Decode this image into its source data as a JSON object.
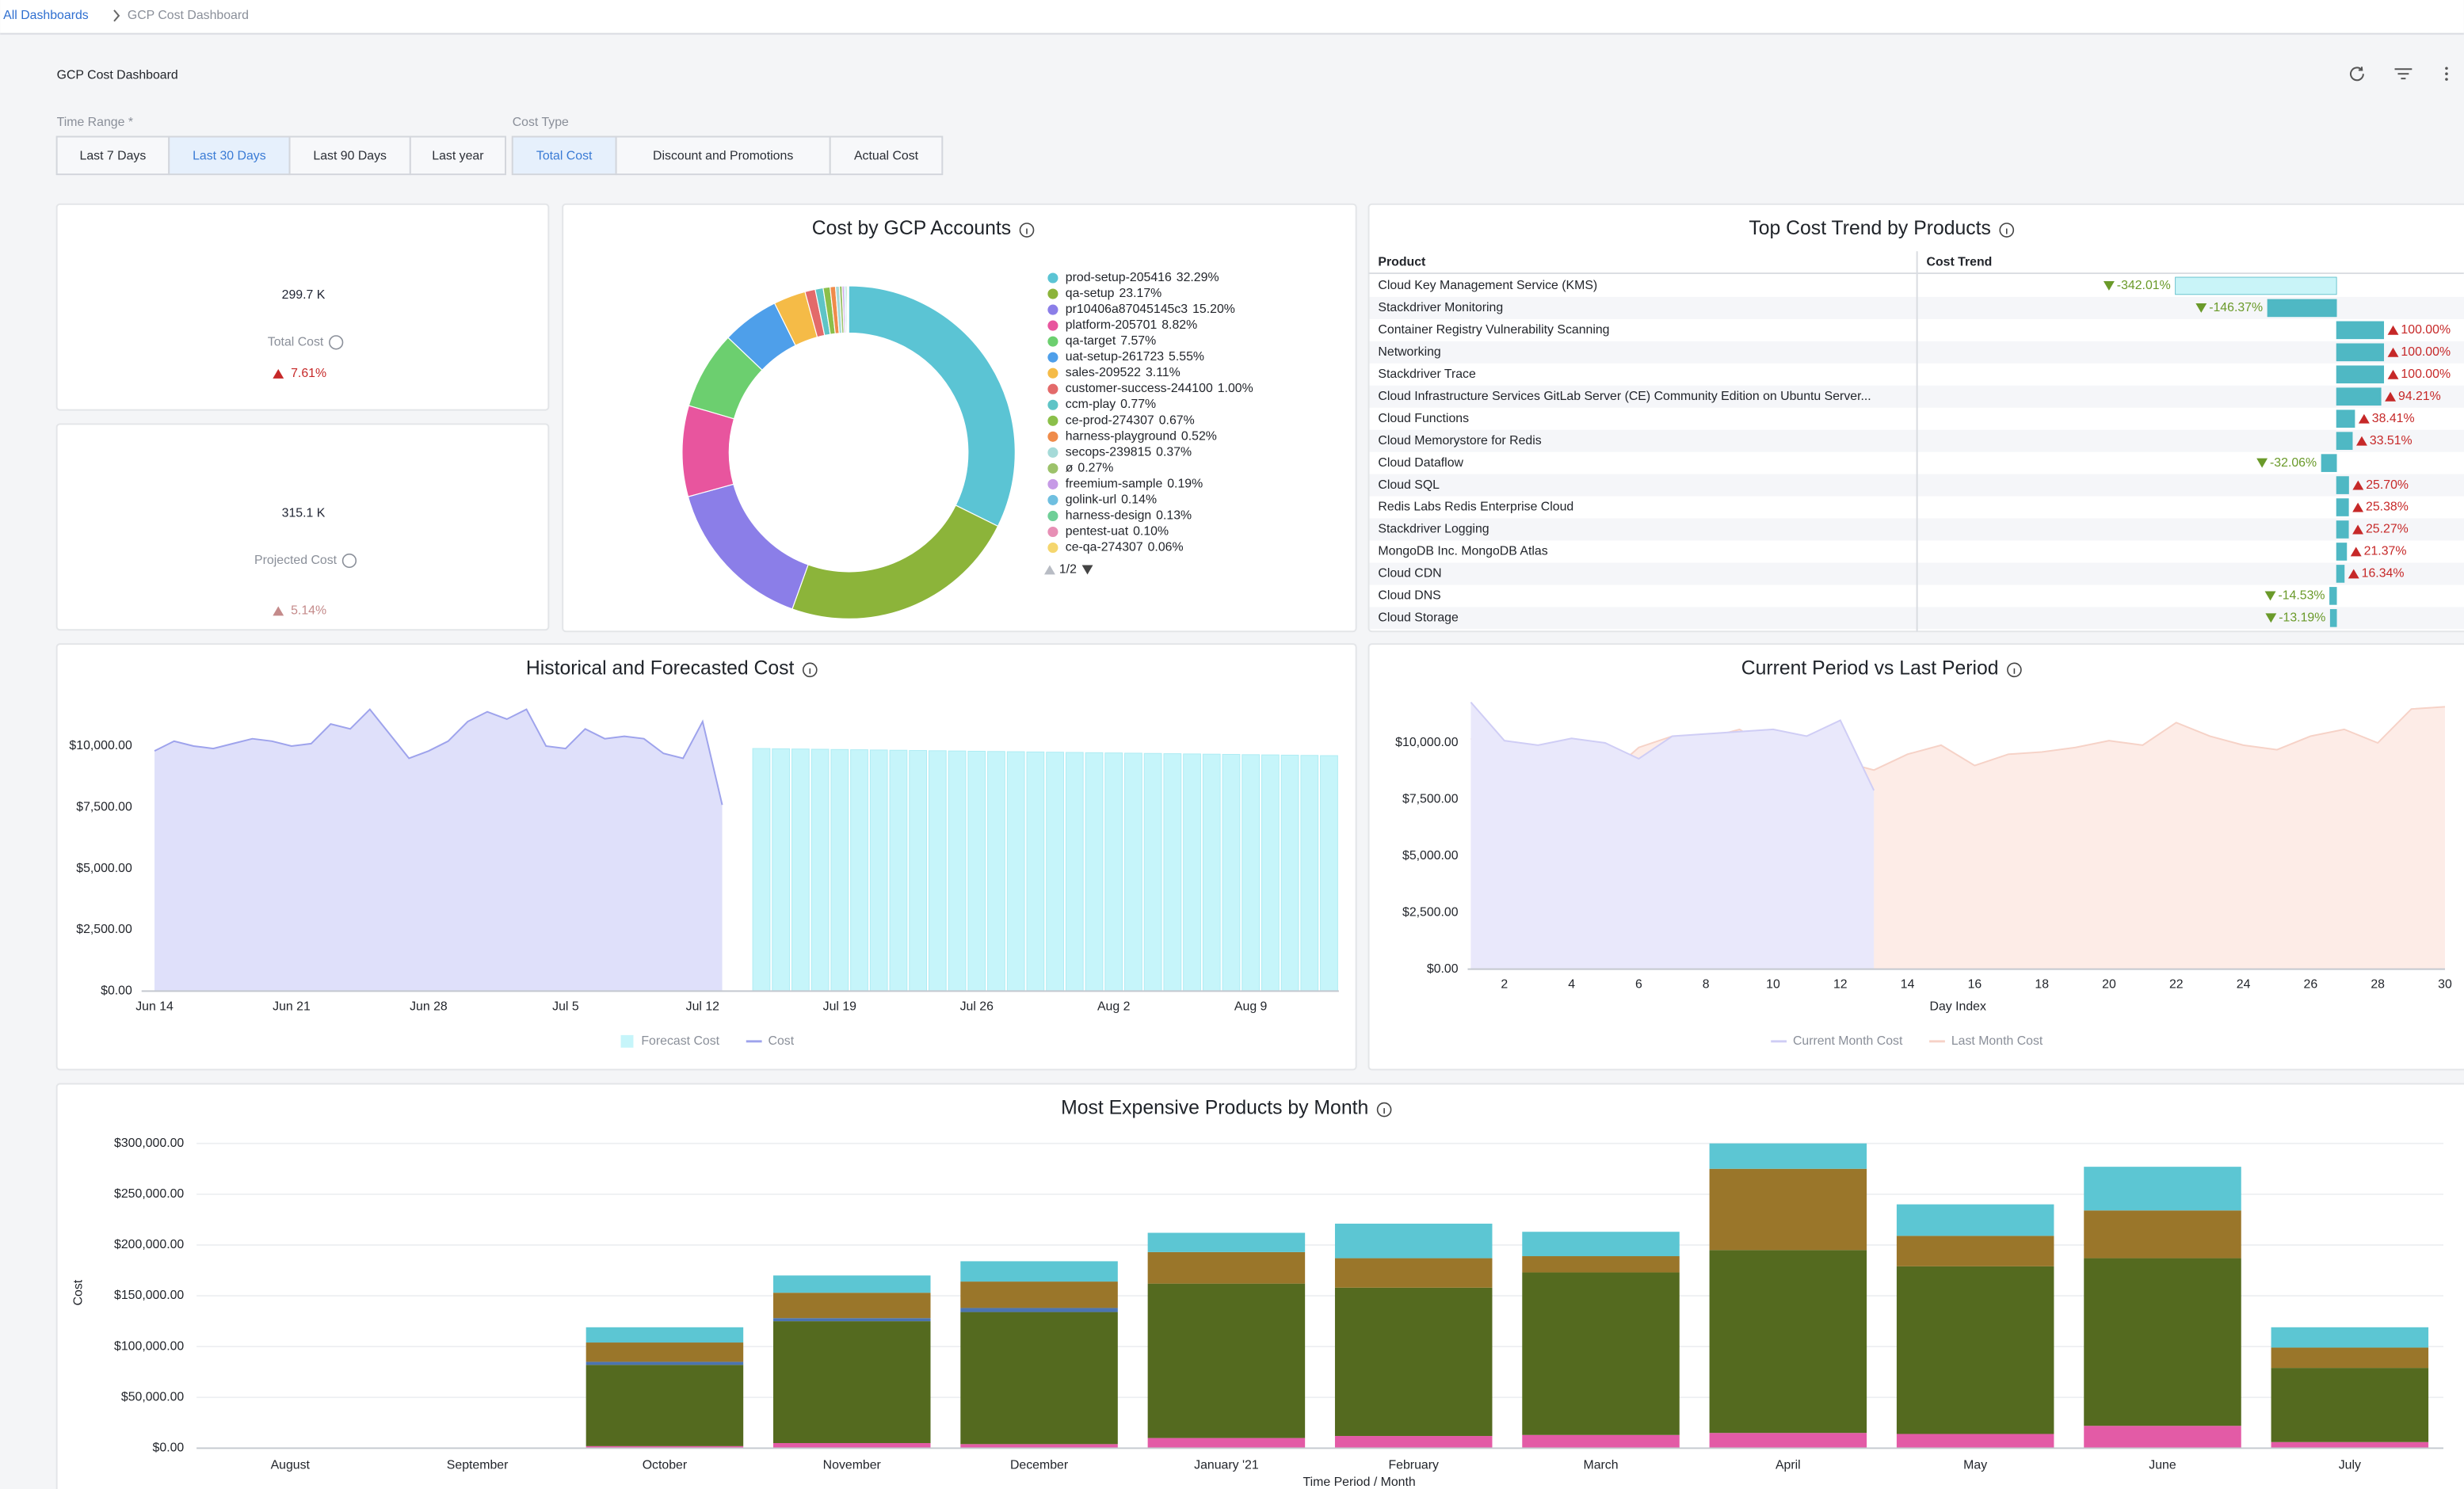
{
  "breadcrumb": {
    "parent": "All Dashboards",
    "current": "GCP Cost Dashboard"
  },
  "title": "GCP Cost Dashboard",
  "filters": [
    {
      "label": "Time Range *",
      "options": [
        "Last 7 Days",
        "Last 30 Days",
        "Last 90 Days",
        "Last year"
      ],
      "selected": 1
    },
    {
      "label": "Cost Type",
      "options": [
        "Total Cost",
        "Discount and Promotions",
        "Actual Cost"
      ],
      "selected": 0
    }
  ],
  "kpis": [
    {
      "value": "299.7 K",
      "label": "Total Cost",
      "change": "7.61%",
      "trend": "up",
      "color": "#c62828"
    },
    {
      "value": "315.1 K",
      "label": "Projected Cost",
      "change": "5.14%",
      "trend": "up",
      "color": "#c48a8a"
    }
  ],
  "chart_data": [
    {
      "type": "pie",
      "title": "Cost by GCP Accounts",
      "categories": [
        "prod-setup-205416",
        "qa-setup",
        "pr10406a87045145c3",
        "platform-205701",
        "qa-target",
        "uat-setup-261723",
        "sales-209522",
        "customer-success-244100",
        "ccm-play",
        "ce-prod-274307",
        "harness-playground",
        "secops-239815",
        "ø",
        "freemium-sample",
        "golink-url",
        "harness-design",
        "pentest-uat",
        "ce-qa-274307"
      ],
      "values": [
        32.29,
        23.17,
        15.2,
        8.82,
        7.57,
        5.55,
        3.11,
        1.0,
        0.77,
        0.67,
        0.52,
        0.37,
        0.27,
        0.19,
        0.14,
        0.13,
        0.1,
        0.06
      ],
      "value_labels": [
        "32.29%",
        "23.17%",
        "15.20%",
        "8.82%",
        "7.57%",
        "5.55%",
        "3.11%",
        "1.00%",
        "0.77%",
        "0.67%",
        "0.52%",
        "0.37%",
        "0.27%",
        "0.19%",
        "0.14%",
        "0.13%",
        "0.10%",
        "0.06%"
      ],
      "colors": [
        "#5bc4d4",
        "#8cb43a",
        "#8b7ee8",
        "#e8559e",
        "#6ccf6f",
        "#4e9fea",
        "#f5bb47",
        "#e36a6a",
        "#5ec4c6",
        "#8bbf4a",
        "#ef8b4a",
        "#a5dad8",
        "#9cc26a",
        "#c69ae6",
        "#6fbfe0",
        "#6fcf97",
        "#e78fb5",
        "#f5d66e"
      ],
      "legend_page": "1/2"
    },
    {
      "type": "table",
      "title": "Top Cost Trend by Products",
      "columns": [
        "Product",
        "Cost Trend"
      ],
      "categories": [
        "Cloud Key Management Service (KMS)",
        "Stackdriver Monitoring",
        "Container Registry Vulnerability Scanning",
        "Networking",
        "Stackdriver Trace",
        "Cloud Infrastructure Services GitLab Server (CE) Community Edition on Ubuntu Server...",
        "Cloud Functions",
        "Cloud Memorystore for Redis",
        "Cloud Dataflow",
        "Cloud SQL",
        "Redis Labs Redis Enterprise Cloud",
        "Stackdriver Logging",
        "MongoDB Inc. MongoDB Atlas",
        "Cloud CDN",
        "Cloud DNS",
        "Cloud Storage"
      ],
      "values": [
        -342.01,
        -146.37,
        100,
        100,
        100,
        94.21,
        38.41,
        33.51,
        -32.06,
        25.7,
        25.38,
        25.27,
        21.37,
        16.34,
        -14.53,
        -13.19
      ],
      "value_labels": [
        "-342.01%",
        "-146.37%",
        "100.00%",
        "100.00%",
        "100.00%",
        "94.21%",
        "38.41%",
        "33.51%",
        "-32.06%",
        "25.70%",
        "25.38%",
        "25.27%",
        "21.37%",
        "16.34%",
        "-14.53%",
        "-13.19%"
      ],
      "color": "#4fb8c4",
      "up_color": "#c62828",
      "down_color": "#6a9a2a"
    },
    {
      "type": "area",
      "title": "Historical and Forecasted Cost",
      "grid": false,
      "categories": [
        "Jun 14",
        null,
        null,
        null,
        null,
        null,
        null,
        "Jun 21",
        null,
        null,
        null,
        null,
        null,
        null,
        "Jun 28",
        null,
        null,
        null,
        null,
        null,
        null,
        "Jul 5",
        null,
        null,
        null,
        null,
        null,
        null,
        "Jul 12",
        null,
        null,
        null,
        null,
        null,
        null,
        "Jul 19",
        null,
        null,
        null,
        null,
        null,
        null,
        "Jul 26",
        null,
        null,
        null,
        null,
        null,
        null,
        "Aug 2",
        null,
        null,
        null,
        null,
        null,
        null,
        "Aug 9",
        null,
        null,
        null,
        null
      ],
      "series": [
        {
          "name": "Forecast Cost",
          "style": "bar",
          "color": "#c6f5fa",
          "stroke": "#aeecf3",
          "values": [
            null,
            null,
            null,
            null,
            null,
            null,
            null,
            null,
            null,
            null,
            null,
            null,
            null,
            null,
            null,
            null,
            null,
            null,
            null,
            null,
            null,
            null,
            null,
            null,
            null,
            null,
            null,
            null,
            null,
            null,
            null,
            9900,
            9890,
            9880,
            9870,
            9860,
            9850,
            9840,
            9830,
            9820,
            9810,
            9800,
            9790,
            9780,
            9770,
            9760,
            9750,
            9740,
            9730,
            9720,
            9710,
            9700,
            9690,
            9680,
            9670,
            9660,
            9650,
            9640,
            9630,
            9620,
            9610
          ]
        },
        {
          "name": "Cost",
          "style": "area",
          "color": "#dfe0fa",
          "stroke": "#9ea3ec",
          "values": [
            9800,
            10200,
            10000,
            9900,
            10100,
            10300,
            10200,
            10000,
            10100,
            10900,
            10700,
            11500,
            10500,
            9500,
            9800,
            10200,
            11000,
            11400,
            11100,
            11500,
            10000,
            9900,
            10700,
            10300,
            10400,
            10300,
            9700,
            9500,
            11000,
            7600,
            null,
            null,
            null,
            null,
            null,
            null,
            null,
            null,
            null,
            null,
            null,
            null,
            null,
            null,
            null,
            null,
            null,
            null,
            null,
            null,
            null,
            null,
            null,
            null,
            null,
            null,
            null,
            null,
            null,
            null,
            null
          ]
        }
      ],
      "ylim": [
        0,
        12000
      ],
      "yticks": [
        {
          "value": 0,
          "label": "$0.00"
        },
        {
          "value": 2500,
          "label": "$2,500.00"
        },
        {
          "value": 5000,
          "label": "$5,000.00"
        },
        {
          "value": 7500,
          "label": "$7,500.00"
        },
        {
          "value": 10000,
          "label": "$10,000.00"
        }
      ]
    },
    {
      "type": "area",
      "title": "Current Period vs Last Period",
      "grid": false,
      "xlabel": "Day Index",
      "x": [
        1,
        2,
        3,
        4,
        5,
        6,
        7,
        8,
        9,
        10,
        11,
        12,
        13,
        14,
        15,
        16,
        17,
        18,
        19,
        20,
        21,
        22,
        23,
        24,
        25,
        26,
        27,
        28,
        29,
        30
      ],
      "series": [
        {
          "name": "Current Month Cost",
          "style": "area",
          "color": "#e9e8fb",
          "stroke": "#cfcdf5",
          "values": [
            11800,
            10100,
            9900,
            10200,
            10000,
            9300,
            10300,
            10400,
            10500,
            10600,
            10300,
            11000,
            7900,
            null,
            null,
            null,
            null,
            null,
            null,
            null,
            null,
            null,
            null,
            null,
            null,
            null,
            null,
            null,
            null,
            null
          ]
        },
        {
          "name": "Last Month Cost",
          "style": "area",
          "color": "#fdece7",
          "stroke": "#f6d2c7",
          "values": [
            10200,
            9000,
            8800,
            8300,
            8500,
            9800,
            10300,
            10200,
            10600,
            9700,
            8600,
            9200,
            8800,
            9500,
            9900,
            9000,
            9500,
            9600,
            9800,
            10100,
            9900,
            10900,
            10300,
            9900,
            9700,
            10300,
            10600,
            10000,
            11500,
            11600
          ]
        }
      ],
      "xlim": [
        1,
        30
      ],
      "xticks": [
        2,
        4,
        6,
        8,
        10,
        12,
        14,
        16,
        18,
        20,
        22,
        24,
        26,
        28,
        30
      ],
      "ylim": [
        0,
        12000
      ],
      "yticks": [
        {
          "value": 0,
          "label": "$0.00"
        },
        {
          "value": 2500,
          "label": "$2,500.00"
        },
        {
          "value": 5000,
          "label": "$5,000.00"
        },
        {
          "value": 7500,
          "label": "$7,500.00"
        },
        {
          "value": 10000,
          "label": "$10,000.00"
        }
      ]
    },
    {
      "type": "bar",
      "stacked": true,
      "grid": true,
      "title": "Most Expensive Products by Month",
      "xlabel": "Time Period / Month",
      "ylabel": "Cost",
      "categories": [
        "August",
        "September",
        "October",
        "November",
        "December",
        "January '21",
        "February",
        "March",
        "April",
        "May",
        "June",
        "July"
      ],
      "series": [
        {
          "color": "#e35ba6",
          "values": [
            0,
            0,
            2000,
            5000,
            4000,
            10000,
            12000,
            13000,
            15000,
            14000,
            22000,
            6000
          ]
        },
        {
          "color": "#546a1f",
          "values": [
            0,
            0,
            80000,
            120000,
            130000,
            152000,
            146000,
            160000,
            180000,
            165000,
            165000,
            73000
          ]
        },
        {
          "color": "#4b74b0",
          "values": [
            0,
            0,
            3000,
            3000,
            4000,
            0,
            0,
            0,
            0,
            0,
            0,
            0
          ]
        },
        {
          "color": "#9a762a",
          "values": [
            0,
            0,
            19000,
            25000,
            26000,
            31000,
            29000,
            16000,
            80000,
            30000,
            47000,
            20000
          ]
        },
        {
          "color": "#5cc6d3",
          "values": [
            0,
            0,
            15000,
            17000,
            20000,
            19000,
            34000,
            24000,
            25000,
            31000,
            43000,
            20000
          ]
        }
      ],
      "ylim": [
        0,
        310000
      ],
      "yticks": [
        {
          "value": 0,
          "label": "$0.00"
        },
        {
          "value": 50000,
          "label": "$50,000.00"
        },
        {
          "value": 100000,
          "label": "$100,000.00"
        },
        {
          "value": 150000,
          "label": "$150,000.00"
        },
        {
          "value": 200000,
          "label": "$200,000.00"
        },
        {
          "value": 250000,
          "label": "$250,000.00"
        },
        {
          "value": 300000,
          "label": "$300,000.00"
        }
      ]
    }
  ]
}
